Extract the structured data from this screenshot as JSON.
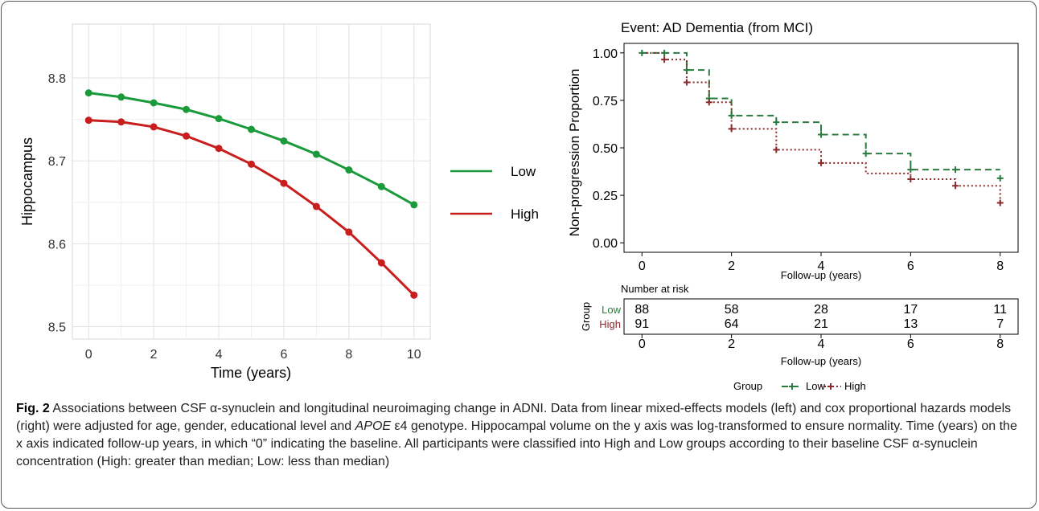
{
  "figure": {
    "caption_label": "Fig. 2",
    "caption_part1": "Associations between CSF α-synuclein and longitudinal neuroimaging change in ADNI. Data from linear mixed-effects models (left) and cox proportional hazards models (right) were adjusted for age, gender, educational level and ",
    "caption_gene": "APOE",
    "caption_part2": " ε4 genotype. Hippocampal volume on the y axis was log-transformed to ensure normality. Time (years) on the x axis indicated follow-up years, in which “0” indicating the baseline. All participants were classified into High and Low groups according to their baseline CSF α-synuclein concentration (High: greater than median; Low: less than median)"
  },
  "colors": {
    "low_left": "#1a9a3a",
    "high_left": "#c81e1e",
    "low_right": "#2b7a3f",
    "high_right": "#8b2a2a"
  },
  "chart_data": [
    {
      "type": "line",
      "title": "",
      "xlabel": "Time (years)",
      "ylabel": "Hippocampus",
      "xlim": [
        -0.5,
        10.5
      ],
      "ylim": [
        8.485,
        8.865
      ],
      "xticks": [
        0,
        2,
        4,
        6,
        8,
        10
      ],
      "yticks": [
        8.5,
        8.6,
        8.7,
        8.8
      ],
      "grid": true,
      "legend_position": "right",
      "x": [
        0,
        1,
        2,
        3,
        4,
        5,
        6,
        7,
        8,
        9,
        10
      ],
      "series": [
        {
          "name": "Low",
          "values": [
            8.782,
            8.777,
            8.77,
            8.762,
            8.751,
            8.738,
            8.724,
            8.708,
            8.689,
            8.669,
            8.647
          ]
        },
        {
          "name": "High",
          "values": [
            8.749,
            8.747,
            8.741,
            8.73,
            8.715,
            8.696,
            8.673,
            8.645,
            8.614,
            8.577,
            8.538
          ]
        }
      ]
    },
    {
      "type": "line",
      "subtype": "kaplan-meier",
      "title": "Event: AD Dementia (from MCI)",
      "xlabel": "Follow-up (years)",
      "ylabel": "Non-progression Proportion",
      "xlim": [
        -0.4,
        8.4
      ],
      "ylim": [
        -0.05,
        1.05
      ],
      "xticks": [
        0,
        2,
        4,
        6,
        8
      ],
      "yticks": [
        "0.00",
        "0.25",
        "0.50",
        "0.75",
        "1.00"
      ],
      "grid": false,
      "legend_title": "Group",
      "legend_position": "bottom",
      "series": [
        {
          "name": "Low",
          "steps": [
            [
              0,
              1.0
            ],
            [
              1.0,
              0.91
            ],
            [
              1.5,
              0.76
            ],
            [
              2.0,
              0.67
            ],
            [
              3.0,
              0.635
            ],
            [
              4.0,
              0.57
            ],
            [
              5.0,
              0.47
            ],
            [
              6.0,
              0.385
            ],
            [
              8.0,
              0.385
            ]
          ],
          "censor": [
            [
              0,
              1.0
            ],
            [
              0.5,
              1.0
            ],
            [
              1.0,
              0.91
            ],
            [
              1.5,
              0.76
            ],
            [
              2.0,
              0.67
            ],
            [
              3.0,
              0.635
            ],
            [
              4.0,
              0.57
            ],
            [
              5.0,
              0.47
            ],
            [
              6.0,
              0.385
            ],
            [
              7.0,
              0.385
            ],
            [
              8.0,
              0.34
            ]
          ]
        },
        {
          "name": "High",
          "steps": [
            [
              0,
              1.0
            ],
            [
              0.5,
              0.965
            ],
            [
              1.0,
              0.845
            ],
            [
              1.5,
              0.74
            ],
            [
              2.0,
              0.6
            ],
            [
              3.0,
              0.49
            ],
            [
              4.0,
              0.42
            ],
            [
              5.0,
              0.365
            ],
            [
              6.0,
              0.335
            ],
            [
              7.0,
              0.3
            ],
            [
              8.0,
              0.21
            ]
          ],
          "censor": [
            [
              0.5,
              0.965
            ],
            [
              1.0,
              0.845
            ],
            [
              1.5,
              0.74
            ],
            [
              2.0,
              0.6
            ],
            [
              3.0,
              0.49
            ],
            [
              4.0,
              0.42
            ],
            [
              6.0,
              0.335
            ],
            [
              7.0,
              0.3
            ],
            [
              8.0,
              0.21
            ]
          ]
        }
      ]
    },
    {
      "type": "table",
      "title": "Number at risk",
      "xlabel": "Follow-up (years)",
      "row_axis_label": "Group",
      "columns": [
        0,
        2,
        4,
        6,
        8
      ],
      "rows": [
        {
          "name": "Low",
          "values": [
            88,
            58,
            28,
            17,
            11
          ]
        },
        {
          "name": "High",
          "values": [
            91,
            64,
            21,
            13,
            7
          ]
        }
      ]
    }
  ]
}
